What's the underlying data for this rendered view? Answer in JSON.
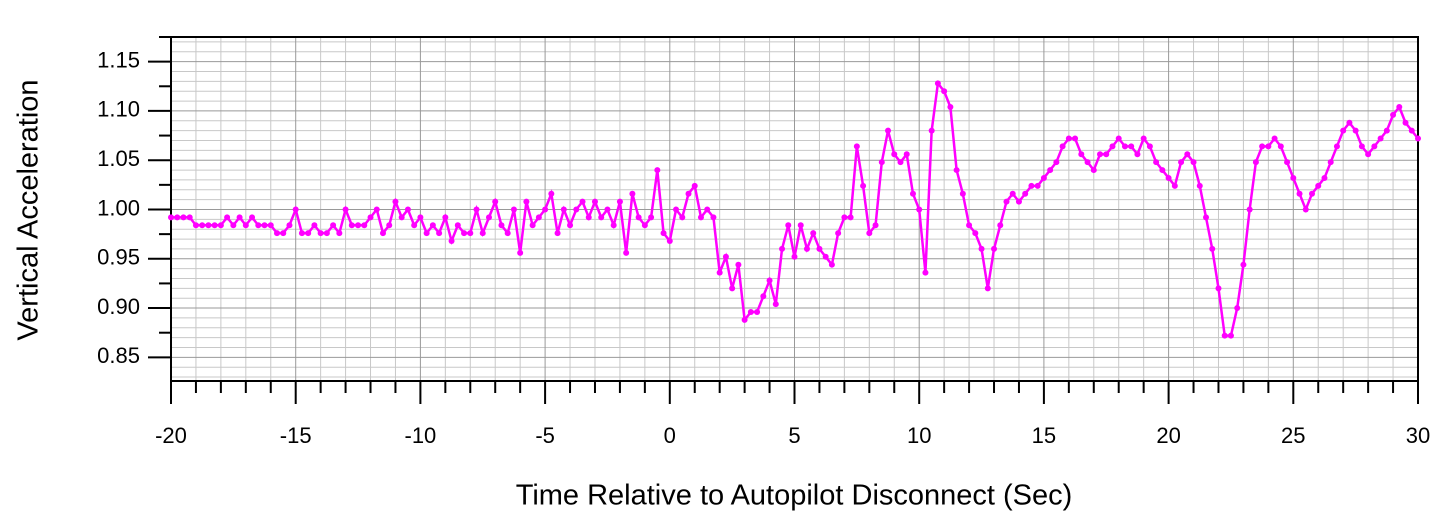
{
  "chart_data": {
    "type": "line",
    "xlabel": "Time Relative to Autopilot Disconnect (Sec)",
    "ylabel": "Vertical Acceleration",
    "xlim": [
      -20,
      30
    ],
    "xticks": [
      -20,
      -15,
      -10,
      -5,
      0,
      5,
      10,
      15,
      20,
      25,
      30
    ],
    "ylim": [
      0.826,
      1.175
    ],
    "yticks": [
      0.85,
      {
        "value": 0.9,
        "label": "0.90"
      },
      0.95,
      {
        "value": 1.0,
        "label": "1.00"
      },
      1.05,
      {
        "value": 1.1,
        "label": "1.10"
      },
      1.15
    ],
    "grid": true,
    "x": [
      -20,
      -19.75,
      -19.5,
      -19.25,
      -19,
      -18.75,
      -18.5,
      -18.25,
      -18,
      -17.75,
      -17.5,
      -17.25,
      -17,
      -16.75,
      -16.5,
      -16.25,
      -16,
      -15.75,
      -15.5,
      -15.25,
      -15,
      -14.75,
      -14.5,
      -14.25,
      -14,
      -13.75,
      -13.5,
      -13.25,
      -13,
      -12.75,
      -12.5,
      -12.25,
      -12,
      -11.75,
      -11.5,
      -11.25,
      -11,
      -10.75,
      -10.5,
      -10.25,
      -10,
      -9.75,
      -9.5,
      -9.25,
      -9,
      -8.75,
      -8.5,
      -8.25,
      -8,
      -7.75,
      -7.5,
      -7.25,
      -7,
      -6.75,
      -6.5,
      -6.25,
      -6,
      -5.75,
      -5.5,
      -5.25,
      -5,
      -4.75,
      -4.5,
      -4.25,
      -4,
      -3.75,
      -3.5,
      -3.25,
      -3,
      -2.75,
      -2.5,
      -2.25,
      -2,
      -1.75,
      -1.5,
      -1.25,
      -1,
      -0.75,
      -0.5,
      -0.25,
      0,
      0.25,
      0.5,
      0.75,
      1,
      1.25,
      1.5,
      1.75,
      2,
      2.25,
      2.5,
      2.75,
      3,
      3.25,
      3.5,
      3.75,
      4,
      4.25,
      4.5,
      4.75,
      5,
      5.25,
      5.5,
      5.75,
      6,
      6.25,
      6.5,
      6.75,
      7,
      7.25,
      7.5,
      7.75,
      8,
      8.25,
      8.5,
      8.75,
      9,
      9.25,
      9.5,
      9.75,
      10,
      10.25,
      10.5,
      10.75,
      11,
      11.25,
      11.5,
      11.75,
      12,
      12.25,
      12.5,
      12.75,
      13,
      13.25,
      13.5,
      13.75,
      14,
      14.25,
      14.5,
      14.75,
      15,
      15.25,
      15.5,
      15.75,
      16,
      16.25,
      16.5,
      16.75,
      17,
      17.25,
      17.5,
      17.75,
      18,
      18.25,
      18.5,
      18.75,
      19,
      19.25,
      19.5,
      19.75,
      20,
      20.25,
      20.5,
      20.75,
      21,
      21.25,
      21.5,
      21.75,
      22,
      22.25,
      22.5,
      22.75,
      23,
      23.25,
      23.5,
      23.75,
      24,
      24.25,
      24.5,
      24.75,
      25,
      25.25,
      25.5,
      25.75,
      26,
      26.25,
      26.5,
      26.75,
      27,
      27.25,
      27.5,
      27.75,
      28,
      28.25,
      28.5,
      28.75,
      29,
      29.25,
      29.5,
      29.75,
      30
    ],
    "series": [
      {
        "color": "#ff00ff",
        "values": [
          0.992,
          0.992,
          0.992,
          0.992,
          0.984,
          0.984,
          0.984,
          0.984,
          0.984,
          0.992,
          0.984,
          0.992,
          0.984,
          0.992,
          0.984,
          0.984,
          0.984,
          0.976,
          0.976,
          0.984,
          1.0,
          0.976,
          0.976,
          0.984,
          0.976,
          0.976,
          0.984,
          0.976,
          1.0,
          0.984,
          0.984,
          0.984,
          0.992,
          1.0,
          0.976,
          0.984,
          1.008,
          0.992,
          1.0,
          0.984,
          0.992,
          0.976,
          0.984,
          0.976,
          0.992,
          0.968,
          0.984,
          0.976,
          0.976,
          1.0,
          0.976,
          0.992,
          1.008,
          0.984,
          0.976,
          1.0,
          0.956,
          1.008,
          0.984,
          0.992,
          1.0,
          1.016,
          0.976,
          1.0,
          0.984,
          1.0,
          1.008,
          0.992,
          1.008,
          0.992,
          1.0,
          0.984,
          1.008,
          0.956,
          1.016,
          0.992,
          0.984,
          0.992,
          1.04,
          0.976,
          0.968,
          1.0,
          0.992,
          1.016,
          1.024,
          0.992,
          1.0,
          0.992,
          0.936,
          0.952,
          0.92,
          0.944,
          0.888,
          0.896,
          0.896,
          0.912,
          0.928,
          0.904,
          0.96,
          0.984,
          0.952,
          0.984,
          0.96,
          0.976,
          0.96,
          0.952,
          0.944,
          0.976,
          0.992,
          0.992,
          1.064,
          1.024,
          0.976,
          0.984,
          1.048,
          1.08,
          1.056,
          1.048,
          1.056,
          1.016,
          1.0,
          0.936,
          1.08,
          1.128,
          1.12,
          1.104,
          1.04,
          1.016,
          0.984,
          0.976,
          0.96,
          0.92,
          0.96,
          0.984,
          1.008,
          1.016,
          1.008,
          1.016,
          1.024,
          1.024,
          1.032,
          1.04,
          1.048,
          1.064,
          1.072,
          1.072,
          1.056,
          1.048,
          1.04,
          1.056,
          1.056,
          1.064,
          1.072,
          1.064,
          1.064,
          1.056,
          1.072,
          1.064,
          1.048,
          1.04,
          1.032,
          1.024,
          1.048,
          1.056,
          1.048,
          1.024,
          0.992,
          0.96,
          0.92,
          0.872,
          0.872,
          0.9,
          0.944,
          1.0,
          1.048,
          1.064,
          1.064,
          1.072,
          1.064,
          1.048,
          1.032,
          1.016,
          1.0,
          1.016,
          1.024,
          1.032,
          1.048,
          1.064,
          1.08,
          1.088,
          1.08,
          1.064,
          1.056,
          1.064,
          1.072,
          1.08,
          1.096,
          1.104,
          1.088,
          1.08,
          1.072
        ]
      }
    ]
  }
}
